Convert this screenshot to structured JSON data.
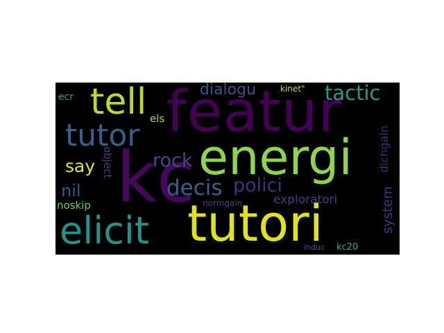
{
  "words": [
    {
      "id": "featur",
      "text": "featur",
      "color": "#440154"
    },
    {
      "id": "kc",
      "text": "kc",
      "color": "#46085c"
    },
    {
      "id": "energi",
      "text": "energi",
      "color": "#8ed645"
    },
    {
      "id": "tutori",
      "text": "tutori",
      "color": "#dfe318"
    },
    {
      "id": "tell",
      "text": "tell",
      "color": "#b5de2b"
    },
    {
      "id": "tutor",
      "text": "tutor",
      "color": "#35608d"
    },
    {
      "id": "elicit",
      "text": "elicit",
      "color": "#1f968b"
    },
    {
      "id": "tactic",
      "text": "tactic",
      "color": "#1f9e89"
    },
    {
      "id": "polici",
      "text": "polici",
      "color": "#472f7d"
    },
    {
      "id": "decis",
      "text": "decis",
      "color": "#34618d"
    },
    {
      "id": "rock",
      "text": "rock",
      "color": "#3e4a89"
    },
    {
      "id": "say",
      "text": "say",
      "color": "#e7e419"
    },
    {
      "id": "dialogu",
      "text": "dialogu",
      "color": "#3b528b"
    },
    {
      "id": "nil",
      "text": "nil",
      "color": "#3a538b"
    },
    {
      "id": "system",
      "text": "system",
      "color": "#46337e"
    },
    {
      "id": "dichgain",
      "text": "dichgain",
      "color": "#482677"
    },
    {
      "id": "exploratori",
      "text": "exploratori",
      "color": "#433e85"
    },
    {
      "id": "object",
      "text": "object",
      "color": "#404387"
    },
    {
      "id": "noskip",
      "text": "noskip",
      "color": "#6ccd5a"
    },
    {
      "id": "normgain",
      "text": "normgain",
      "color": "#414487"
    },
    {
      "id": "els",
      "text": "els",
      "color": "#a8db34"
    },
    {
      "id": "ecr",
      "text": "ecr",
      "color": "#20a386"
    },
    {
      "id": "kinet",
      "text": "kinet\"",
      "color": "#b8de29"
    },
    {
      "id": "induc",
      "text": "induc",
      "color": "#3b528b"
    },
    {
      "id": "kc20",
      "text": "kc20",
      "color": "#2ab07f"
    }
  ]
}
